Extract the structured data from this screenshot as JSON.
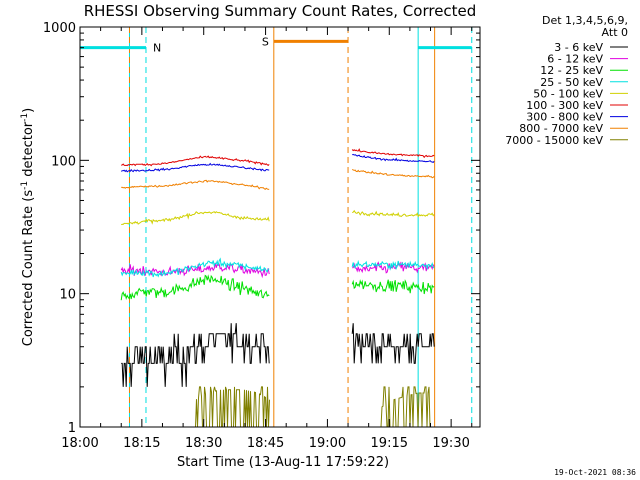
{
  "chart_data": {
    "type": "line",
    "title": "RHESSI Observing Summary Count Rates, Corrected",
    "xlabel": "Start Time (13-Aug-11 17:59:22)",
    "ylabel": "Corrected Count Rate (s⁻¹ detector⁻¹)",
    "ylabel_main": "Corrected Count Rate (s",
    "ylabel_sup1": "-1",
    "ylabel_mid": " detector",
    "ylabel_sup2": "-1",
    "ylabel_end": ")",
    "yscale": "log",
    "ylim": [
      1,
      1000
    ],
    "xlim": [
      "18:00",
      "19:37"
    ],
    "x_ticks": [
      "18:00",
      "18:15",
      "18:30",
      "18:45",
      "19:00",
      "19:15",
      "19:30"
    ],
    "y_ticks": [
      "1",
      "10",
      "100",
      "1000"
    ],
    "legend": {
      "header": [
        "Det 1,3,4,5,6,9,",
        "Att 0"
      ],
      "position": "right"
    },
    "series": [
      {
        "name": "3 - 6 keV",
        "color": "#000000",
        "segments": [
          {
            "x": [
              "18:10",
              "18:13",
              "18:16",
              "18:19",
              "18:22",
              "18:25",
              "18:28",
              "18:31",
              "18:34",
              "18:37",
              "18:40",
              "18:43",
              "18:46"
            ],
            "y": [
              2.5,
              3.3,
              3.5,
              3.2,
              3.4,
              3.5,
              4.0,
              4.3,
              4.6,
              4.5,
              4.4,
              4.3,
              4.2
            ]
          },
          {
            "x": [
              "19:06",
              "19:09",
              "19:12",
              "19:15",
              "19:18",
              "19:21",
              "19:24",
              "19:26"
            ],
            "y": [
              4.0,
              4.1,
              4.2,
              4.1,
              4.2,
              4.1,
              4.2,
              4.2
            ]
          }
        ]
      },
      {
        "name": "6 - 12 keV",
        "color": "#e000e0",
        "segments": [
          {
            "x": [
              "18:10",
              "18:13",
              "18:16",
              "18:19",
              "18:22",
              "18:25",
              "18:28",
              "18:31",
              "18:34",
              "18:37",
              "18:40",
              "18:43",
              "18:46"
            ],
            "y": [
              14.5,
              15,
              15,
              14.5,
              14.5,
              15,
              15,
              15.5,
              16,
              15.5,
              15,
              14.5,
              14.5
            ]
          },
          {
            "x": [
              "19:06",
              "19:09",
              "19:12",
              "19:15",
              "19:18",
              "19:21",
              "19:24",
              "19:26"
            ],
            "y": [
              15.5,
              15,
              15.5,
              15.5,
              16,
              15.5,
              15.5,
              15.5
            ]
          }
        ]
      },
      {
        "name": "12 - 25 keV",
        "color": "#00e000",
        "segments": [
          {
            "x": [
              "18:10",
              "18:13",
              "18:16",
              "18:19",
              "18:22",
              "18:25",
              "18:28",
              "18:31",
              "18:34",
              "18:37",
              "18:40",
              "18:43",
              "18:46"
            ],
            "y": [
              9.5,
              10,
              10.5,
              10.2,
              10.5,
              11,
              12,
              13,
              12.5,
              11.5,
              11,
              10,
              9.5
            ]
          },
          {
            "x": [
              "19:06",
              "19:09",
              "19:12",
              "19:15",
              "19:18",
              "19:21",
              "19:24",
              "19:26"
            ],
            "y": [
              12,
              11.8,
              11.5,
              11.5,
              11.5,
              11.2,
              11.2,
              11
            ]
          }
        ]
      },
      {
        "name": "25 - 50 keV",
        "color": "#00e0e0",
        "segments": [
          {
            "x": [
              "18:10",
              "18:13",
              "18:16",
              "18:19",
              "18:22",
              "18:25",
              "18:28",
              "18:31",
              "18:34",
              "18:37",
              "18:40",
              "18:43",
              "18:46"
            ],
            "y": [
              14,
              14.5,
              14.5,
              14,
              14.5,
              15,
              16,
              17,
              17,
              16.5,
              16,
              15.5,
              15
            ]
          },
          {
            "x": [
              "19:06",
              "19:09",
              "19:12",
              "19:15",
              "19:18",
              "19:21",
              "19:24",
              "19:26"
            ],
            "y": [
              16.5,
              16.5,
              16.5,
              16.5,
              16.5,
              16.5,
              16.5,
              16.5
            ]
          }
        ]
      },
      {
        "name": "50 - 100 keV",
        "color": "#d0d000",
        "segments": [
          {
            "x": [
              "18:10",
              "18:13",
              "18:16",
              "18:19",
              "18:22",
              "18:25",
              "18:28",
              "18:31",
              "18:34",
              "18:37",
              "18:40",
              "18:43",
              "18:46"
            ],
            "y": [
              33,
              34,
              35,
              35,
              36,
              38,
              40,
              41,
              40,
              38,
              37,
              36,
              36
            ]
          },
          {
            "x": [
              "19:06",
              "19:09",
              "19:12",
              "19:15",
              "19:18",
              "19:21",
              "19:24",
              "19:26"
            ],
            "y": [
              41,
              40,
              40,
              39,
              39,
              39,
              39,
              39
            ]
          }
        ]
      },
      {
        "name": "100 - 300 keV",
        "color": "#e00000",
        "segments": [
          {
            "x": [
              "18:10",
              "18:13",
              "18:16",
              "18:19",
              "18:22",
              "18:25",
              "18:28",
              "18:31",
              "18:34",
              "18:37",
              "18:40",
              "18:43",
              "18:46"
            ],
            "y": [
              92,
              93,
              93,
              94,
              96,
              100,
              104,
              106,
              104,
              101,
              99,
              96,
              93
            ]
          },
          {
            "x": [
              "19:06",
              "19:09",
              "19:12",
              "19:15",
              "19:18",
              "19:21",
              "19:24",
              "19:26"
            ],
            "y": [
              120,
              116,
              113,
              111,
              110,
              109,
              108,
              108
            ]
          }
        ]
      },
      {
        "name": "300 - 800 keV",
        "color": "#0000e0",
        "segments": [
          {
            "x": [
              "18:10",
              "18:13",
              "18:16",
              "18:19",
              "18:22",
              "18:25",
              "18:28",
              "18:31",
              "18:34",
              "18:37",
              "18:40",
              "18:43",
              "18:46"
            ],
            "y": [
              83,
              84,
              84,
              85,
              86,
              89,
              92,
              93,
              92,
              90,
              88,
              86,
              84
            ]
          },
          {
            "x": [
              "19:06",
              "19:09",
              "19:12",
              "19:15",
              "19:18",
              "19:21",
              "19:24",
              "19:26"
            ],
            "y": [
              110,
              106,
              103,
              101,
              100,
              99,
              98,
              98
            ]
          }
        ]
      },
      {
        "name": "800 - 7000 keV",
        "color": "#f08000",
        "segments": [
          {
            "x": [
              "18:10",
              "18:13",
              "18:16",
              "18:19",
              "18:22",
              "18:25",
              "18:28",
              "18:31",
              "18:34",
              "18:37",
              "18:40",
              "18:43",
              "18:46"
            ],
            "y": [
              62,
              63,
              64,
              64,
              65,
              67,
              69,
              70,
              69,
              67,
              65,
              63,
              61
            ]
          },
          {
            "x": [
              "19:06",
              "19:09",
              "19:12",
              "19:15",
              "19:18",
              "19:21",
              "19:24",
              "19:26"
            ],
            "y": [
              85,
              82,
              80,
              78,
              77,
              76,
              76,
              75
            ]
          }
        ]
      },
      {
        "name": "7000 - 15000 keV",
        "color": "#808000",
        "segments": [
          {
            "x": [
              "18:28",
              "18:31",
              "18:34",
              "18:37",
              "18:40",
              "18:43",
              "18:46"
            ],
            "y": [
              1.6,
              1.8,
              1.9,
              1.9,
              1.9,
              1.8,
              1.6
            ]
          },
          {
            "x": [
              "19:13",
              "19:16",
              "19:19",
              "19:22",
              "19:25"
            ],
            "y": [
              1.4,
              1.6,
              1.7,
              1.8,
              1.8
            ]
          }
        ]
      }
    ],
    "annotations": {
      "cyan_label": "N",
      "orange_label": "S",
      "cyan_color": "#00e0e0",
      "orange_color": "#f08000",
      "cyan_solid_x": [
        "18:00",
        "18:12",
        "19:22"
      ],
      "cyan_dashed_x": [
        "18:16",
        "19:35"
      ],
      "orange_solid_x": [
        "18:47",
        "19:26"
      ],
      "orange_dashed_x": [
        "18:12",
        "19:05"
      ],
      "cyan_bars": [
        {
          "x": [
            "18:00",
            "18:16"
          ],
          "y": 700
        },
        {
          "x": [
            "19:22",
            "19:35"
          ],
          "y": 700
        }
      ],
      "orange_bars": [
        {
          "x": [
            "18:47",
            "19:05"
          ],
          "y": 780
        }
      ]
    },
    "footer_date": "19-Oct-2021 08:36"
  }
}
